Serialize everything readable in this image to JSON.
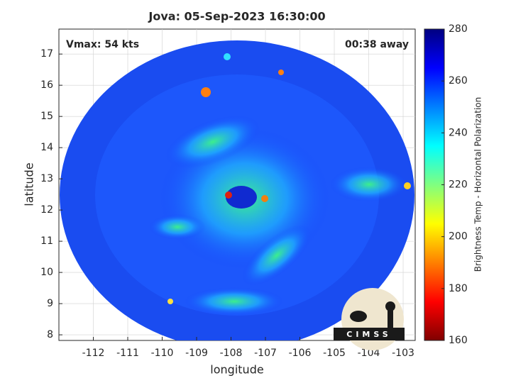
{
  "chart_data": {
    "type": "image",
    "title": "Jova: 05-Sep-2023 16:30:00",
    "xlabel": "longitude",
    "ylabel": "latitude",
    "xlim": [
      -113,
      -102.65
    ],
    "ylim": [
      7.82,
      17.8
    ],
    "xticks": [
      -112,
      -111,
      -110,
      -109,
      -108,
      -107,
      -106,
      -105,
      -104,
      -103
    ],
    "yticks": [
      8,
      9,
      10,
      11,
      12,
      13,
      14,
      15,
      16,
      17
    ],
    "grid": true,
    "annotations": [
      "Vmax: 54 kts",
      "00:38 away"
    ],
    "colorbar": {
      "label": "Brightness Temp - Horizontal Polarization",
      "lim": [
        160,
        280
      ],
      "ticks": [
        160,
        180,
        200,
        220,
        240,
        260,
        280
      ],
      "colormap": "jet"
    },
    "logo": "CIMSS"
  }
}
